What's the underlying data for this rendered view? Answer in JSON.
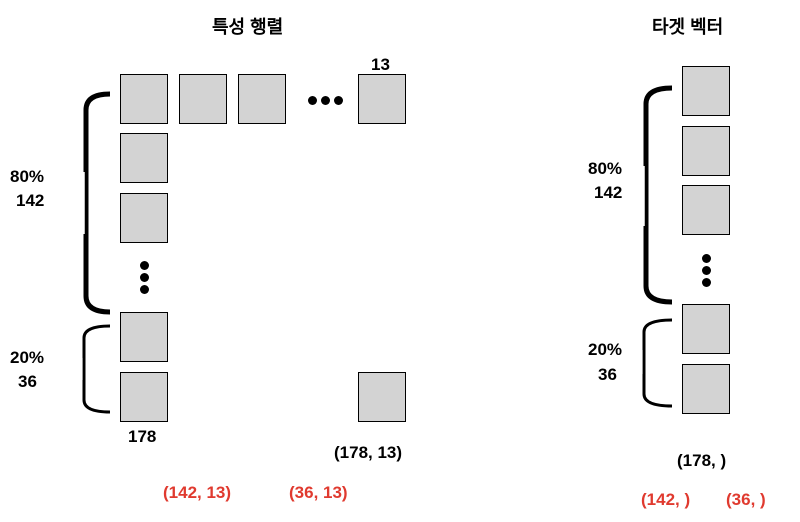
{
  "feature_matrix": {
    "title": "특성 행렬",
    "cols": "13",
    "rows": "178",
    "train_pct": "80%",
    "train_rows": "142",
    "test_pct": "20%",
    "test_rows": "36",
    "shape": "(178, 13)",
    "train_shape": "(142, 13)",
    "test_shape": "(36, 13)"
  },
  "target_vector": {
    "title": "타겟 벡터",
    "train_pct": "80%",
    "train_rows": "142",
    "test_pct": "20%",
    "test_rows": "36",
    "shape": "(178, )",
    "train_shape": "(142, )",
    "test_shape": "(36, )"
  },
  "colors": {
    "cell": "#d3d3d3",
    "highlight": "#e03a2f",
    "ink": "#000000"
  }
}
